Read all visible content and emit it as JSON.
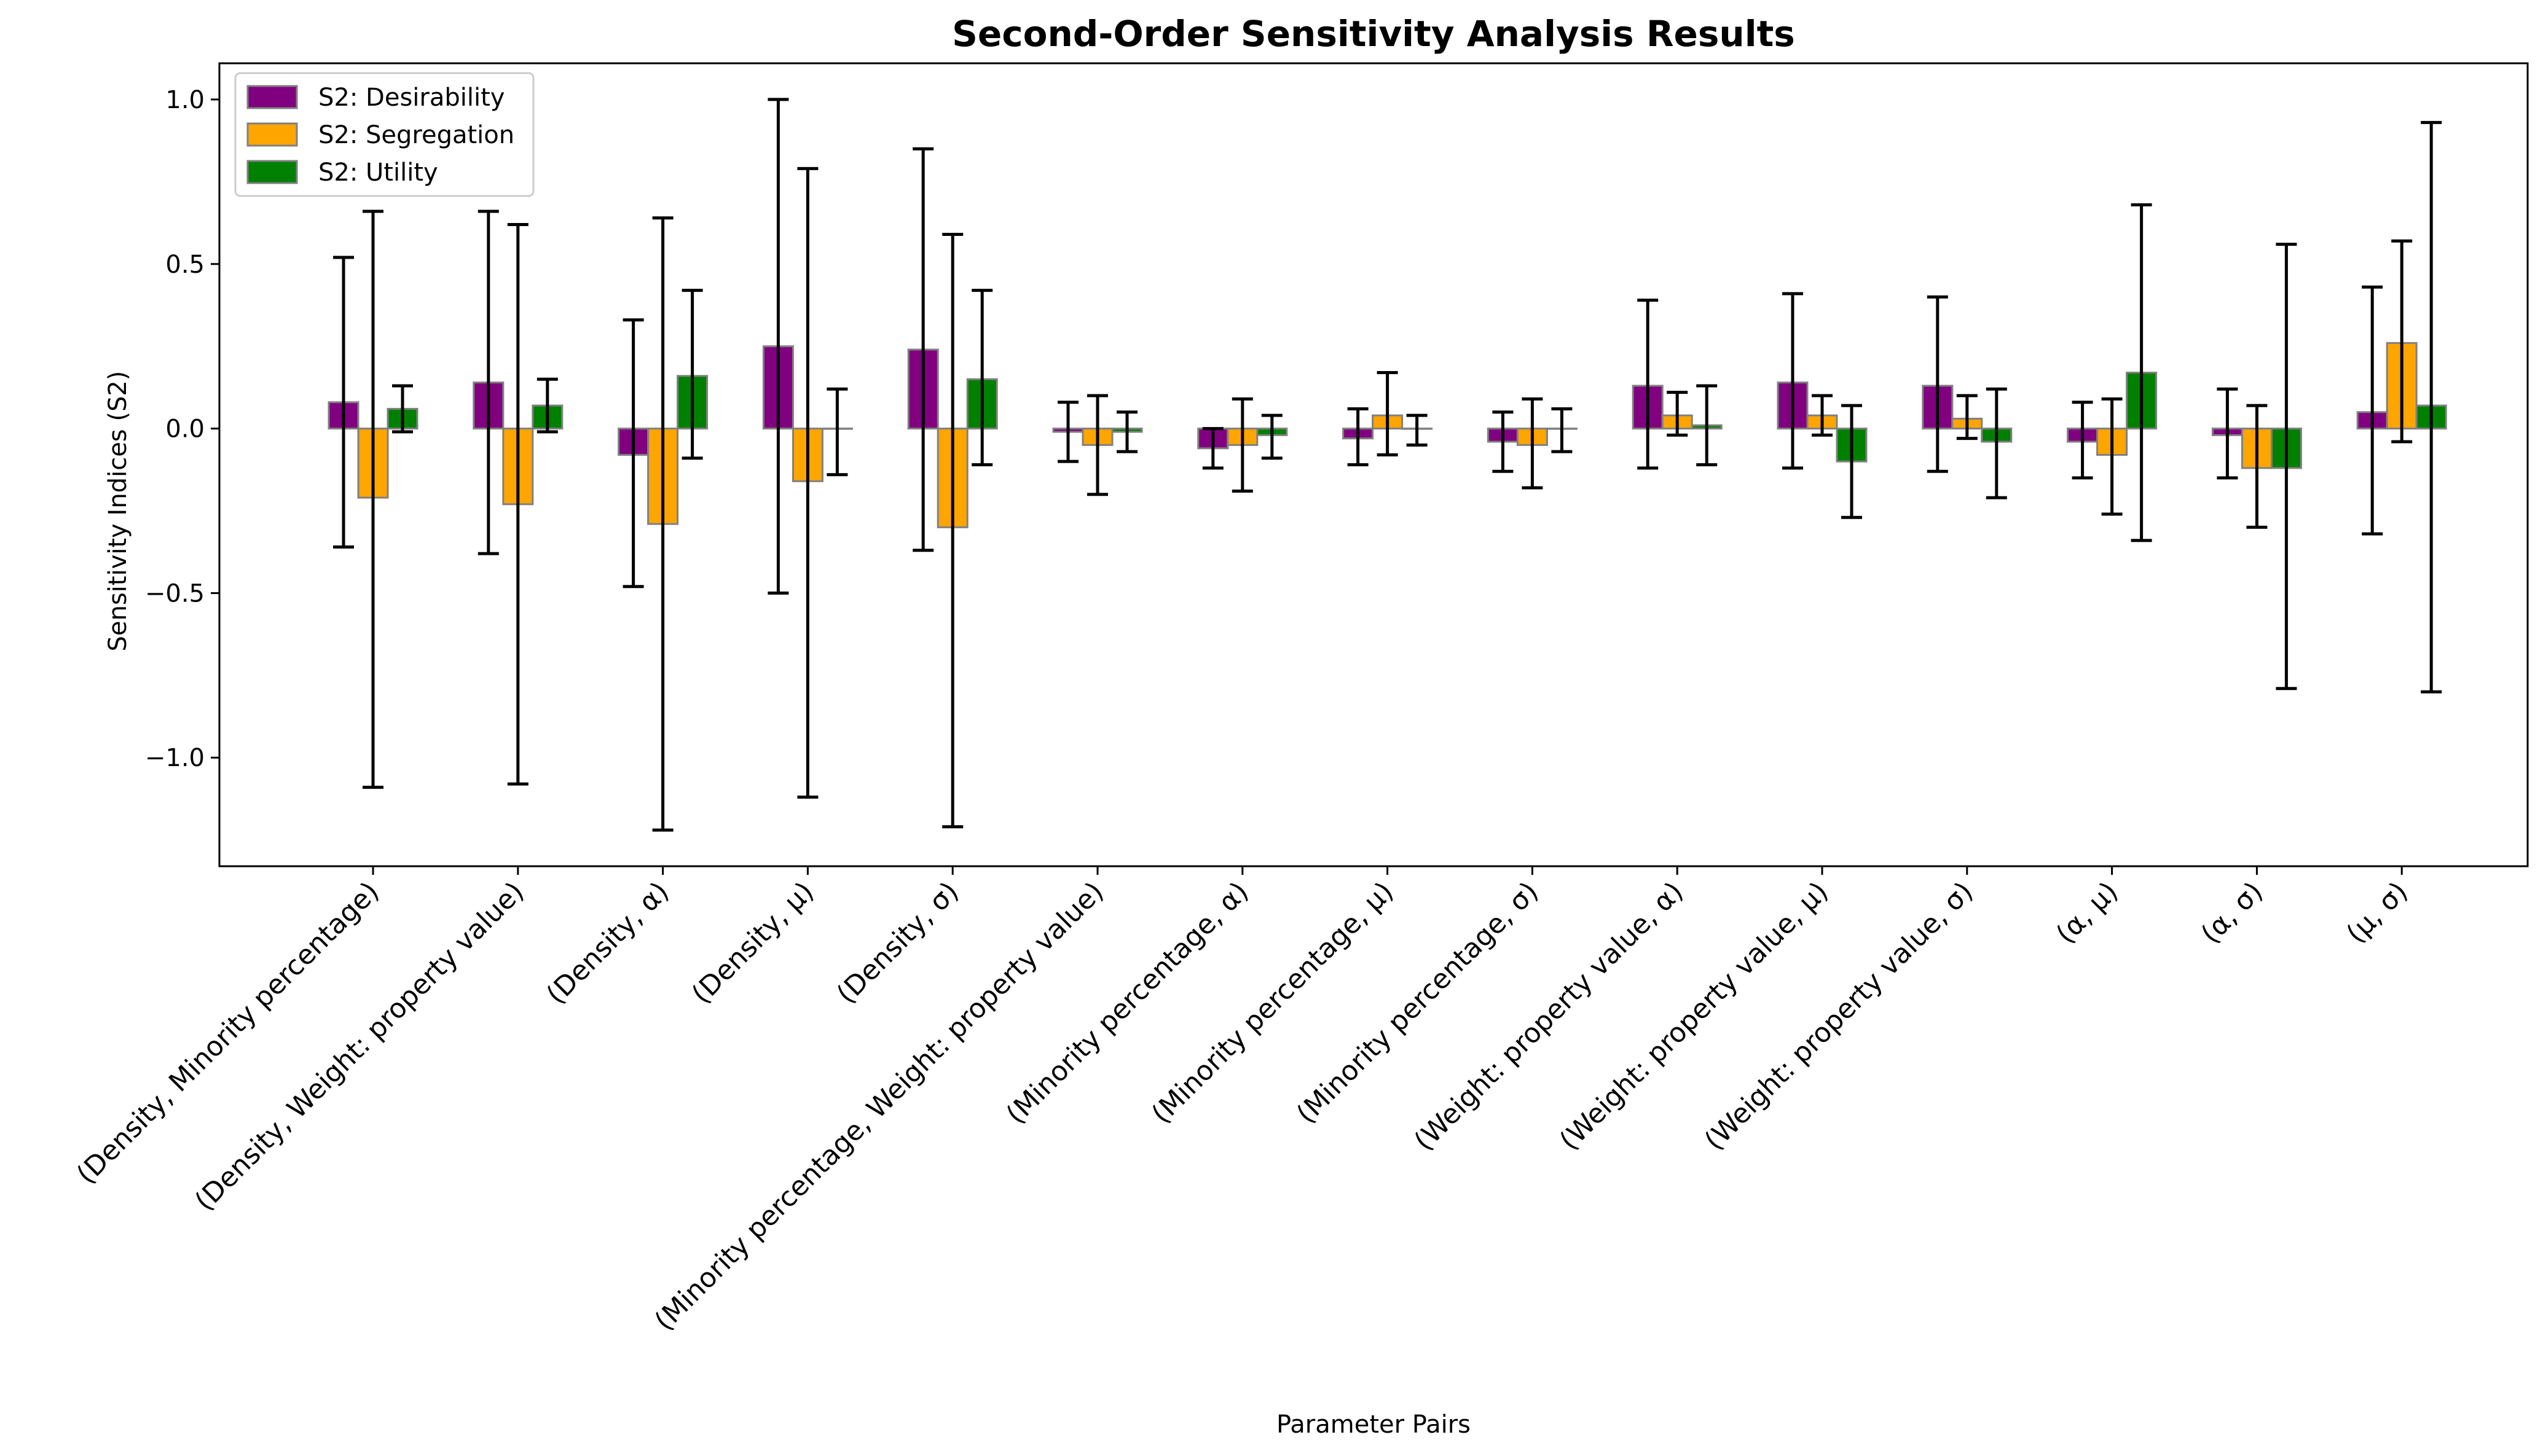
{
  "chart_data": {
    "type": "bar",
    "title": "Second-Order Sensitivity Analysis Results",
    "xlabel": "Parameter Pairs",
    "ylabel": "Sensitivity Indices (S2)",
    "ylim": [
      -1.33,
      1.11
    ],
    "yticks": [
      -1.0,
      -0.5,
      0.0,
      0.5,
      1.0
    ],
    "ytick_labels": [
      "−1.0",
      "−0.5",
      "0.0",
      "0.5",
      "1.0"
    ],
    "grid": false,
    "legend_position": "top-left",
    "categories": [
      "(Density, Minority percentage)",
      "(Density, Weight: property value)",
      "(Density, α)",
      "(Density, μ)",
      "(Density, σ)",
      "(Minority percentage, Weight: property value)",
      "(Minority percentage, α)",
      "(Minority percentage, μ)",
      "(Minority percentage, σ)",
      "(Weight: property value, α)",
      "(Weight: property value, μ)",
      "(Weight: property value, σ)",
      "(α, μ)",
      "(α, σ)",
      "(μ, σ)"
    ],
    "series": [
      {
        "name": "S2: Desirability",
        "color": "#800080",
        "values": [
          0.08,
          0.14,
          -0.08,
          0.25,
          0.24,
          -0.01,
          -0.06,
          -0.03,
          -0.04,
          0.13,
          0.14,
          0.13,
          -0.04,
          -0.02,
          0.05
        ],
        "err_low": [
          -0.36,
          -0.38,
          -0.48,
          -0.5,
          -0.37,
          -0.1,
          -0.12,
          -0.11,
          -0.13,
          -0.12,
          -0.12,
          -0.13,
          -0.15,
          -0.15,
          -0.32
        ],
        "err_high": [
          0.52,
          0.66,
          0.33,
          1.0,
          0.85,
          0.08,
          0.0,
          0.06,
          0.05,
          0.39,
          0.41,
          0.4,
          0.08,
          0.12,
          0.43
        ]
      },
      {
        "name": "S2: Segregation",
        "color": "#ffa500",
        "values": [
          -0.21,
          -0.23,
          -0.29,
          -0.16,
          -0.3,
          -0.05,
          -0.05,
          0.04,
          -0.05,
          0.04,
          0.04,
          0.03,
          -0.08,
          -0.12,
          0.26
        ],
        "err_low": [
          -1.09,
          -1.08,
          -1.22,
          -1.12,
          -1.21,
          -0.2,
          -0.19,
          -0.08,
          -0.18,
          -0.02,
          -0.02,
          -0.03,
          -0.26,
          -0.3,
          -0.04
        ],
        "err_high": [
          0.66,
          0.62,
          0.64,
          0.79,
          0.59,
          0.1,
          0.09,
          0.17,
          0.09,
          0.11,
          0.1,
          0.1,
          0.09,
          0.07,
          0.57
        ]
      },
      {
        "name": "S2: Utility",
        "color": "#008000",
        "values": [
          0.06,
          0.07,
          0.16,
          0.0,
          0.15,
          -0.01,
          -0.02,
          0.0,
          0.0,
          0.01,
          -0.1,
          -0.04,
          0.17,
          -0.12,
          0.07
        ],
        "err_low": [
          -0.01,
          -0.01,
          -0.09,
          -0.14,
          -0.11,
          -0.07,
          -0.09,
          -0.05,
          -0.07,
          -0.11,
          -0.27,
          -0.21,
          -0.34,
          -0.79,
          -0.8
        ],
        "err_high": [
          0.13,
          0.15,
          0.42,
          0.12,
          0.42,
          0.05,
          0.04,
          0.04,
          0.06,
          0.13,
          0.07,
          0.12,
          0.68,
          0.56,
          0.93
        ]
      }
    ]
  }
}
